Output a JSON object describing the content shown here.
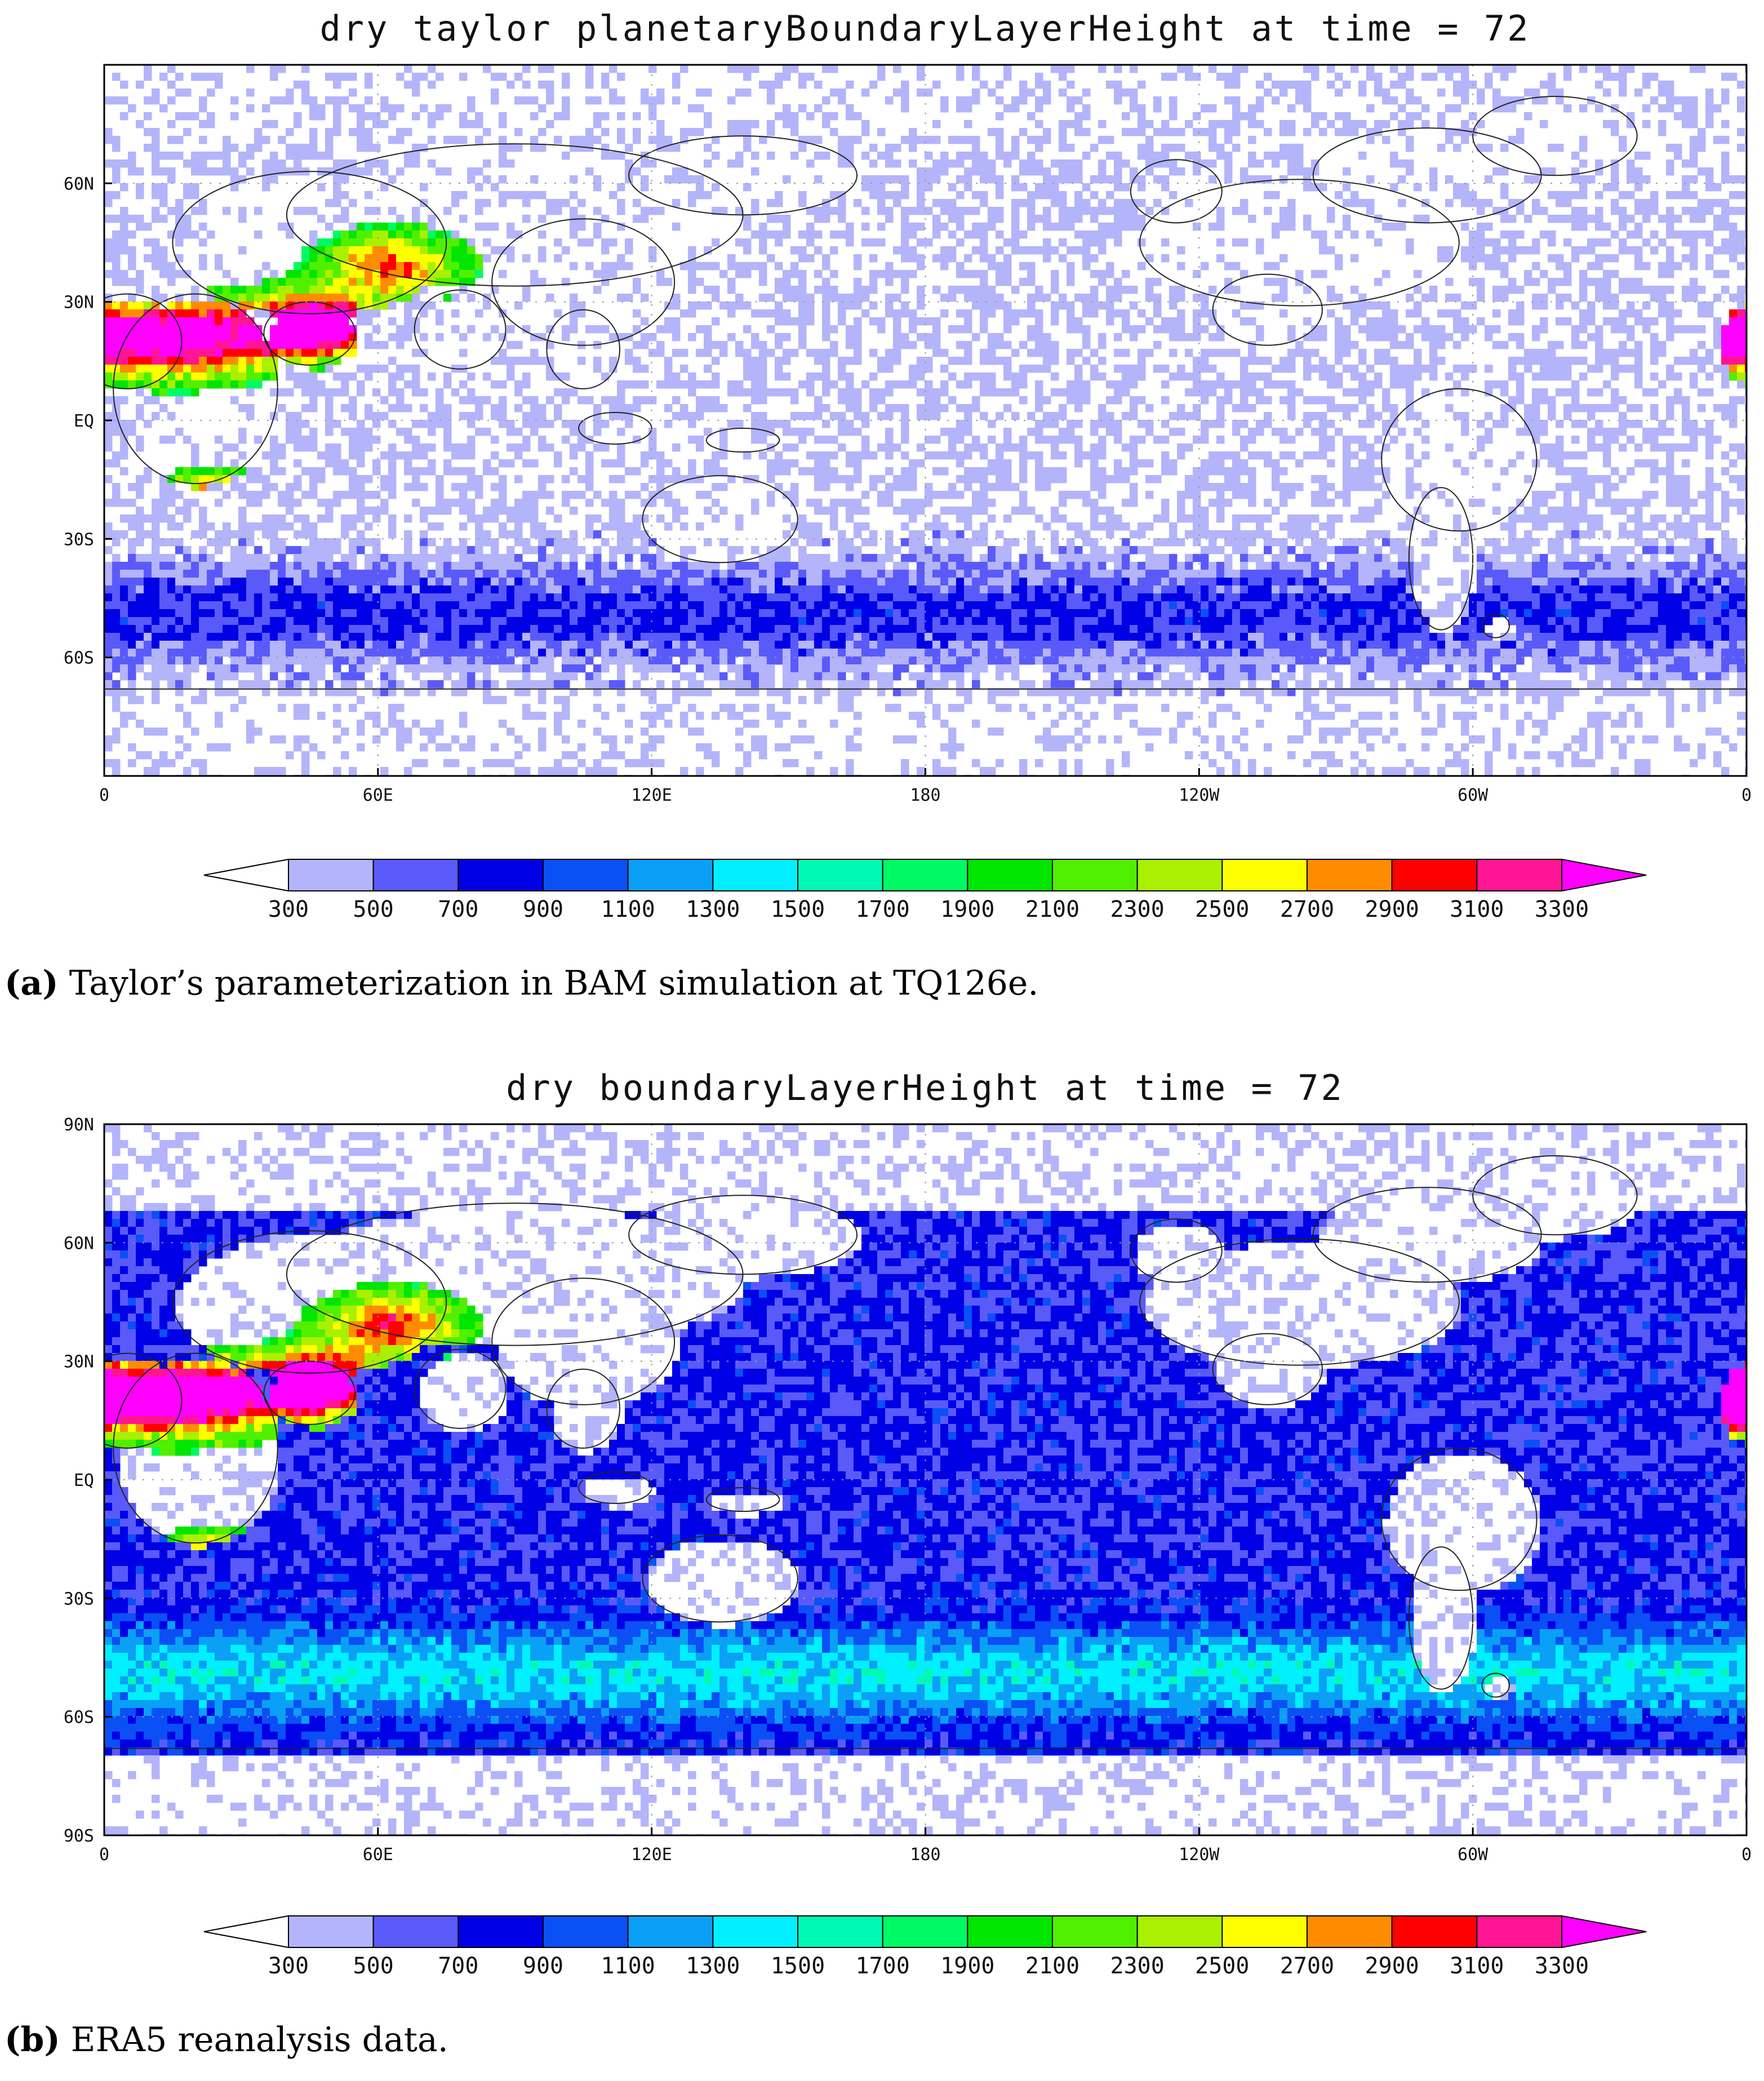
{
  "levels": [
    300,
    500,
    700,
    900,
    1100,
    1300,
    1500,
    1700,
    1900,
    2100,
    2300,
    2500,
    2700,
    2900,
    3100,
    3300
  ],
  "colors": [
    "#ffffff",
    "#b4b4fa",
    "#5a5afa",
    "#0000e6",
    "#0a50f5",
    "#0aa0f5",
    "#00f0ff",
    "#00fab4",
    "#00fa64",
    "#00e600",
    "#50f000",
    "#aaf000",
    "#ffff00",
    "#ff8c00",
    "#ff0000",
    "#ff1493",
    "#ff00ff"
  ],
  "lon_ticks": [
    "0",
    "60E",
    "120E",
    "180",
    "120W",
    "60W",
    "0"
  ],
  "panels": [
    {
      "title": "dry taylor planetaryBoundaryLayerHeight at time = 72",
      "lat_ticks": [
        "60N",
        "30N",
        "EQ",
        "30S",
        "60S"
      ],
      "caption_letter": "(a)",
      "caption_text": " Taylor’s parameterization in BAM simulation at TQ126e."
    },
    {
      "title": "dry boundaryLayerHeight at time = 72",
      "lat_ticks": [
        "90N",
        "60N",
        "30N",
        "EQ",
        "30S",
        "60S",
        "90S"
      ],
      "caption_letter": "(b)",
      "caption_text": " ERA5 reanalysis data."
    }
  ]
}
